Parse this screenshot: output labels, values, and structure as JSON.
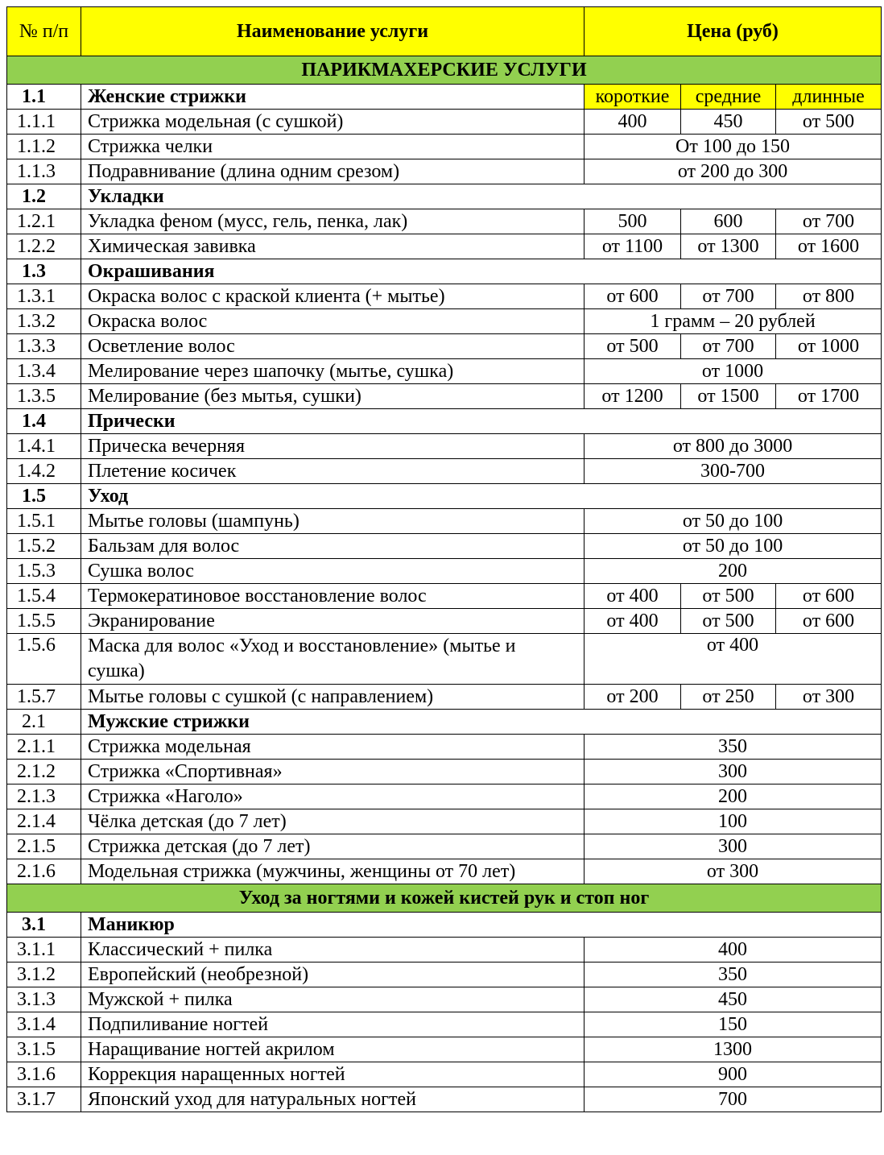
{
  "header": {
    "num": "№ п/п",
    "name": "Наименование услуги",
    "price": "Цена (руб)"
  },
  "colors": {
    "header_bg": "#ffff00",
    "section_bg": "#92d050"
  },
  "rows": [
    {
      "type": "section",
      "title": "ПАРИКМАХЕРСКИЕ УСЛУГИ"
    },
    {
      "type": "group",
      "num": "1.1",
      "name": "Женские стрижки",
      "sub": [
        "короткие",
        "средние",
        "длинные"
      ]
    },
    {
      "num": "1.1.1",
      "name": "Стрижка модельная (с сушкой)",
      "prices": [
        "400",
        "450",
        "от 500"
      ]
    },
    {
      "num": "1.1.2",
      "name": "Стрижка челки",
      "price": "От 100 до 150"
    },
    {
      "num": "1.1.3",
      "name": "Подравнивание (длина одним срезом)",
      "price": "от 200 до 300"
    },
    {
      "type": "group",
      "num": "1.2",
      "name": "Укладки"
    },
    {
      "num": "1.2.1",
      "name": "Укладка феном (мусс, гель, пенка, лак)",
      "prices": [
        "500",
        "600",
        "от 700"
      ]
    },
    {
      "num": "1.2.2",
      "name": "Химическая завивка",
      "prices": [
        "от 1100",
        "от 1300",
        "от 1600"
      ]
    },
    {
      "type": "group",
      "num": "1.3",
      "name": "Окрашивания"
    },
    {
      "num": "1.3.1",
      "name": "Окраска волос с краской клиента (+ мытье)",
      "prices": [
        "от 600",
        "от 700",
        "от 800"
      ]
    },
    {
      "num": "1.3.2",
      "name": "Окраска волос",
      "price": "1 грамм – 20 рублей"
    },
    {
      "num": "1.3.3",
      "name": "Осветление волос",
      "prices": [
        "от 500",
        "от 700",
        "от 1000"
      ]
    },
    {
      "num": "1.3.4",
      "name": "Мелирование через шапочку (мытье, сушка)",
      "price": "от 1000"
    },
    {
      "num": "1.3.5",
      "name": "Мелирование (без мытья, сушки)",
      "prices": [
        "от 1200",
        "от 1500",
        "от 1700"
      ]
    },
    {
      "type": "group",
      "num": "1.4",
      "name": "Прически"
    },
    {
      "num": "1.4.1",
      "name": "Прическа вечерняя",
      "price": "от 800 до 3000"
    },
    {
      "num": "1.4.2",
      "name": "Плетение косичек",
      "price": "300-700"
    },
    {
      "type": "group",
      "num": "1.5",
      "name": "Уход"
    },
    {
      "num": "1.5.1",
      "name": "Мытье головы (шампунь)",
      "price": "от 50 до 100"
    },
    {
      "num": "1.5.2",
      "name": "Бальзам для волос",
      "price": "от 50 до 100"
    },
    {
      "num": "1.5.3",
      "name": "Сушка волос",
      "price": "200"
    },
    {
      "num": "1.5.4",
      "name": "Термокератиновое восстановление волос",
      "prices": [
        "от 400",
        "от 500",
        "от 600"
      ]
    },
    {
      "num": "1.5.5",
      "name": "Экранирование",
      "prices": [
        "от 400",
        "от 500",
        "от 600"
      ]
    },
    {
      "num": "1.5.6",
      "name": "Маска для волос «Уход и восстановление» (мытье и сушка)",
      "price": "от 400",
      "wrap": true
    },
    {
      "num": "1.5.7",
      "name": "Мытье головы с сушкой (с направлением)",
      "prices": [
        "от 200",
        "от 250",
        "от 300"
      ]
    },
    {
      "type": "group",
      "num": "2.1",
      "name": "Мужские стрижки",
      "num_plain": true
    },
    {
      "num": "2.1.1",
      "name": "Стрижка модельная",
      "price": "350"
    },
    {
      "num": "2.1.2",
      "name": "Стрижка «Спортивная»",
      "price": "300"
    },
    {
      "num": "2.1.3",
      "name": "Стрижка «Наголо»",
      "price": "200"
    },
    {
      "num": "2.1.4",
      "name": "Чёлка детская (до 7 лет)",
      "price": "100"
    },
    {
      "num": "2.1.5",
      "name": "Стрижка детская (до 7 лет)",
      "price": "300"
    },
    {
      "num": "2.1.6",
      "name": "Модельная стрижка (мужчины, женщины от 70 лет)",
      "price": "от 300"
    },
    {
      "type": "section",
      "title": "Уход за ногтями и кожей кистей рук и стоп ног"
    },
    {
      "type": "group",
      "num": "3.1",
      "name": "Маникюр"
    },
    {
      "num": "3.1.1",
      "name": "Классический + пилка",
      "price": "400"
    },
    {
      "num": "3.1.2",
      "name": "Европейский (необрезной)",
      "price": "350"
    },
    {
      "num": "3.1.3",
      "name": "Мужской + пилка",
      "price": "450"
    },
    {
      "num": "3.1.4",
      "name": "Подпиливание ногтей",
      "price": "150"
    },
    {
      "num": "3.1.5",
      "name": "Наращивание ногтей акрилом",
      "price": "1300"
    },
    {
      "num": "3.1.6",
      "name": "Коррекция наращенных ногтей",
      "price": "900"
    },
    {
      "num": "3.1.7",
      "name": "Японский уход для натуральных ногтей",
      "price": "700"
    }
  ]
}
